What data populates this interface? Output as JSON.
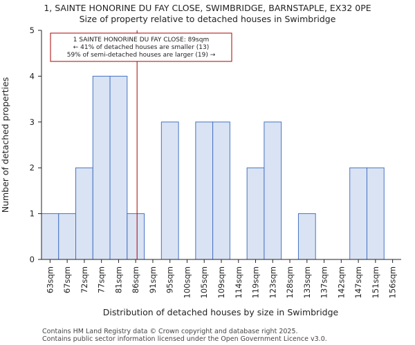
{
  "chart_data": {
    "type": "bar",
    "title": "1, SAINTE HONORINE DU FAY CLOSE, SWIMBRIDGE, BARNSTAPLE, EX32 0PE",
    "subtitle": "Size of property relative to detached houses in Swimbridge",
    "xlabel": "Distribution of detached houses by size in Swimbridge",
    "ylabel": "Number of detached properties",
    "categories": [
      "63sqm",
      "67sqm",
      "72sqm",
      "77sqm",
      "81sqm",
      "86sqm",
      "91sqm",
      "95sqm",
      "100sqm",
      "105sqm",
      "109sqm",
      "114sqm",
      "119sqm",
      "123sqm",
      "128sqm",
      "133sqm",
      "137sqm",
      "142sqm",
      "147sqm",
      "151sqm",
      "156sqm"
    ],
    "values": [
      1,
      1,
      2,
      4,
      4,
      1,
      0,
      3,
      0,
      3,
      3,
      0,
      2,
      3,
      0,
      1,
      0,
      0,
      2,
      2,
      0
    ],
    "ylim": [
      0,
      5
    ],
    "yticks": [
      0,
      1,
      2,
      3,
      4,
      5
    ],
    "grid": false,
    "colors": {
      "bar_fill": "#dae3f3",
      "bar_edge": "#4472c4",
      "marker_line": "#aa0000",
      "annotation_border": "#aa0000",
      "axis": "#222222"
    },
    "marker": {
      "label": "1 SAINTE HONORINE DU FAY CLOSE",
      "value_sqm": 89,
      "category_position": 5.58
    },
    "annotation": {
      "line1": "1 SAINTE HONORINE DU FAY CLOSE: 89sqm",
      "line2": "← 41% of detached houses are smaller (13)",
      "line3": "59% of semi-detached houses are larger (19) →"
    },
    "footer": {
      "line1": "Contains HM Land Registry data © Crown copyright and database right 2025.",
      "line2": "Contains public sector information licensed under the Open Government Licence v3.0."
    }
  }
}
